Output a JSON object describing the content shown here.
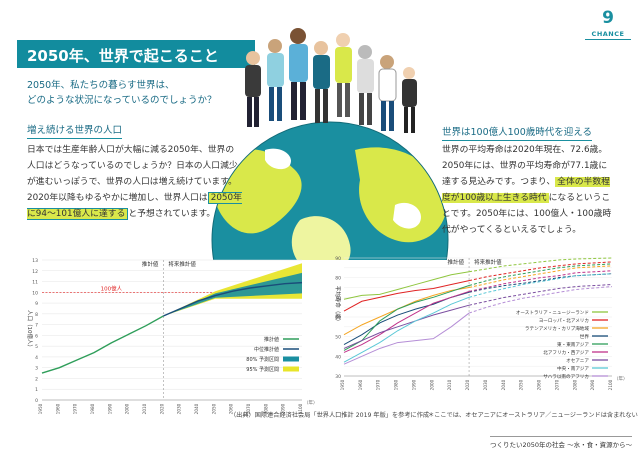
{
  "page": {
    "number": "9",
    "brand": "CHANCE",
    "footer": "つくりたい2050年の社会 ～水・食・資源から～"
  },
  "title": "2050年、世界で起こること",
  "intro": {
    "line1": "2050年、私たちの暮らす世界は、",
    "line2": "どのような状況になっているのでしょうか？"
  },
  "left_section": {
    "heading": "増え続ける世界の人口",
    "text_before": "日本では生産年齢人口が大幅に減る2050年、世界の人口はどうなっているのでしょうか？日本の人口減少が進むいっぽうで、世界の人口は増え続けています。2020年以降もゆるやかに増加し、世界人口は",
    "highlight": "2050年に94〜101億人に達する",
    "text_after": "と予想されています。"
  },
  "right_section": {
    "heading": "世界は100億人100歳時代を迎える",
    "text_before": "世界の平均寿命は2020年現在、72.6歳。2050年には、世界の平均寿命が77.1歳に達する見込みです。つまり、",
    "highlight": "全体の半数程度が100歳以上生きる時代",
    "text_after": "になるということです。2050年には、100億人・100歳時代がやってくるといえるでしょう。"
  },
  "colors": {
    "teal": "#128c9e",
    "accent": "#d9e84a",
    "red": "#e02424",
    "green": "#2f9e5a",
    "navy": "#1a4d7a"
  },
  "chart_data": [
    {
      "type": "line",
      "ylabel": "人口（10億人）",
      "xlabel": "（年）",
      "region_labels": [
        "推計値",
        "将来推計値"
      ],
      "reference_line": {
        "value": 10,
        "label": "100億人"
      },
      "ylim": [
        0,
        13
      ],
      "yticks": [
        "0",
        "1",
        "2",
        "3",
        "4",
        "5",
        "6",
        "7",
        "8",
        "9",
        "10",
        "11",
        "12",
        "13"
      ],
      "xticks": [
        "1950",
        "1960",
        "1970",
        "1980",
        "1990",
        "2000",
        "2010",
        "2020",
        "2030",
        "2040",
        "2050",
        "2060",
        "2070",
        "2080",
        "2090",
        "2100"
      ],
      "series": [
        {
          "name": "推計値",
          "x": [
            1950,
            1960,
            1970,
            1980,
            1990,
            2000,
            2010,
            2020
          ],
          "values": [
            2.5,
            3.0,
            3.7,
            4.4,
            5.3,
            6.1,
            6.9,
            7.8
          ]
        },
        {
          "name": "中位推計値",
          "x": [
            2020,
            2030,
            2040,
            2050,
            2060,
            2070,
            2080,
            2090,
            2100
          ],
          "values": [
            7.8,
            8.5,
            9.2,
            9.7,
            10.1,
            10.4,
            10.6,
            10.8,
            10.9
          ]
        }
      ],
      "bands": [
        {
          "name": "80% 予測区間",
          "x": [
            2020,
            2050,
            2100
          ],
          "low": [
            7.8,
            9.5,
            9.9
          ],
          "high": [
            7.8,
            9.9,
            11.8
          ]
        },
        {
          "name": "95% 予測区間",
          "x": [
            2020,
            2050,
            2100
          ],
          "low": [
            7.8,
            9.4,
            9.4
          ],
          "high": [
            7.8,
            10.1,
            12.7
          ]
        }
      ],
      "legend": [
        "推計値",
        "中位推計値",
        "80% 予測区間",
        "95% 予測区間"
      ]
    },
    {
      "type": "line",
      "ylabel": "平均寿命（歳）",
      "xlabel": "（年）",
      "region_labels": [
        "推計値",
        "将来推計値"
      ],
      "ylim": [
        30,
        90
      ],
      "yticks": [
        "30",
        "40",
        "50",
        "60",
        "70",
        "80",
        "90"
      ],
      "xticks": [
        "1950",
        "1960",
        "1970",
        "1980",
        "1990",
        "2000",
        "2010",
        "2020",
        "2030",
        "2040",
        "2050",
        "2060",
        "2070",
        "2080",
        "2090",
        "2100"
      ],
      "series": [
        {
          "name": "オーストラリア・ニュージーランド",
          "color": "#8fc63f",
          "values": [
            69,
            71,
            71.5,
            74,
            76.5,
            79,
            81.5,
            83,
            84.5,
            86,
            87,
            88,
            89,
            89.5,
            90
          ]
        },
        {
          "name": "ヨーロッパ・北アメリカ",
          "color": "#e02424",
          "values": [
            63,
            68,
            70,
            72,
            73.5,
            74.5,
            76.5,
            78.5,
            80.5,
            82,
            83.5,
            85,
            86,
            87,
            88
          ]
        },
        {
          "name": "ラテンアメリカ・カリブ海地域",
          "color": "#f5a623",
          "values": [
            51,
            56,
            60,
            64,
            68,
            71,
            73.5,
            75,
            77,
            79,
            80.5,
            82,
            83.5,
            85,
            86
          ]
        },
        {
          "name": "世界",
          "color": "#1a4d7a",
          "values": [
            46,
            51,
            57,
            61,
            64,
            66.5,
            70,
            72.6,
            74.5,
            76,
            77.1,
            78.5,
            80,
            81,
            82
          ]
        },
        {
          "name": "東・東南アジア",
          "color": "#2f9e5a",
          "values": [
            43,
            48,
            58,
            64,
            67.5,
            70,
            73,
            76,
            78.5,
            80.5,
            82,
            83.5,
            85,
            86,
            87
          ]
        },
        {
          "name": "北アフリカ・西アジア",
          "color": "#c0328a",
          "values": [
            42,
            46,
            51,
            57,
            62,
            67,
            70,
            73,
            75,
            77,
            78.5,
            80,
            81,
            82.5,
            83.5
          ]
        },
        {
          "name": "オセアニア",
          "color": "#7b4fa0",
          "values": [
            44,
            48,
            52,
            55,
            58,
            61,
            63.5,
            66,
            68,
            70,
            71.5,
            73,
            74.5,
            75.5,
            76.5
          ]
        },
        {
          "name": "中央・南アジア",
          "color": "#5bc8d6",
          "values": [
            37,
            42,
            47,
            53,
            58,
            62,
            66.5,
            70,
            72.5,
            74.5,
            76.5,
            78,
            79.5,
            81,
            82
          ]
        },
        {
          "name": "サハラ以南のアフリカ",
          "color": "#b58ed6",
          "values": [
            36,
            40,
            44,
            47,
            48,
            49,
            55,
            62,
            65,
            67.5,
            69.5,
            71,
            72.5,
            74,
            75.5
          ]
        }
      ]
    }
  ],
  "source": "（出典）国際連合経済社会局「世界人口推計 2019 年版」を参考に作成",
  "footnote": "＊ここでは、オセアニアにオーストラリア／ニュージーランドは含まれない"
}
